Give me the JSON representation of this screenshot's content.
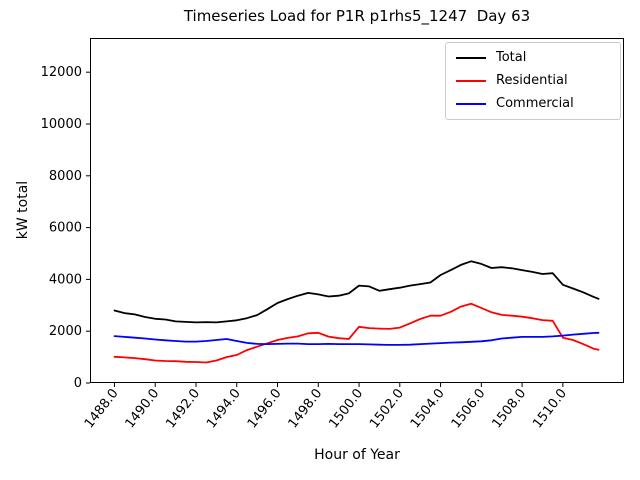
{
  "chart_data": {
    "type": "line",
    "title": "Timeseries Load for P1R p1rhs5_1247  Day 63",
    "xlabel": "Hour of Year",
    "ylabel": "kW total",
    "xlim": [
      1486.8,
      1513.0
    ],
    "ylim": [
      0,
      13320
    ],
    "grid": false,
    "legend_position": "upper right",
    "xticks": [
      1488,
      1490,
      1492,
      1494,
      1496,
      1498,
      1500,
      1502,
      1504,
      1506,
      1508,
      1510
    ],
    "xtick_labels": [
      "1488.0",
      "1490.0",
      "1492.0",
      "1494.0",
      "1496.0",
      "1498.0",
      "1500.0",
      "1502.0",
      "1504.0",
      "1506.0",
      "1508.0",
      "1510.0"
    ],
    "yticks": [
      0,
      2000,
      4000,
      6000,
      8000,
      10000,
      12000
    ],
    "ytick_labels": [
      "0",
      "2000",
      "4000",
      "6000",
      "8000",
      "10000",
      "12000"
    ],
    "x": [
      1488.0,
      1488.5,
      1489.0,
      1489.5,
      1490.0,
      1490.5,
      1491.0,
      1491.5,
      1492.0,
      1492.5,
      1493.0,
      1493.5,
      1494.0,
      1494.5,
      1495.0,
      1495.5,
      1496.0,
      1496.5,
      1497.0,
      1497.5,
      1498.0,
      1498.5,
      1499.0,
      1499.5,
      1500.0,
      1500.5,
      1501.0,
      1501.5,
      1502.0,
      1502.5,
      1503.0,
      1503.5,
      1504.0,
      1504.5,
      1505.0,
      1505.5,
      1506.0,
      1506.5,
      1507.0,
      1507.5,
      1508.0,
      1508.5,
      1509.0,
      1509.5,
      1510.0,
      1510.5,
      1511.0,
      1511.5,
      1511.75
    ],
    "series": [
      {
        "name": "Total",
        "color": "#000000",
        "values": [
          2800,
          2700,
          2650,
          2550,
          2480,
          2450,
          2380,
          2360,
          2340,
          2350,
          2340,
          2380,
          2420,
          2500,
          2620,
          2850,
          3090,
          3240,
          3370,
          3480,
          3420,
          3340,
          3370,
          3460,
          3760,
          3730,
          3560,
          3620,
          3680,
          3760,
          3820,
          3880,
          4170,
          4360,
          4560,
          4700,
          4600,
          4440,
          4470,
          4430,
          4360,
          4290,
          4210,
          4240,
          3790,
          3650,
          3500,
          3330,
          3250
        ]
      },
      {
        "name": "Residential",
        "color": "#ff0000",
        "values": [
          1010,
          990,
          960,
          920,
          870,
          850,
          840,
          820,
          810,
          790,
          870,
          1000,
          1080,
          1270,
          1400,
          1530,
          1660,
          1740,
          1800,
          1920,
          1940,
          1790,
          1730,
          1700,
          2170,
          2120,
          2100,
          2090,
          2140,
          2300,
          2470,
          2600,
          2600,
          2750,
          2950,
          3060,
          2900,
          2730,
          2630,
          2600,
          2560,
          2500,
          2430,
          2400,
          1750,
          1660,
          1500,
          1330,
          1280
        ]
      },
      {
        "name": "Commercial",
        "color": "#0000ff",
        "values": [
          1810,
          1780,
          1750,
          1720,
          1680,
          1650,
          1620,
          1600,
          1600,
          1620,
          1660,
          1700,
          1620,
          1550,
          1510,
          1500,
          1510,
          1520,
          1520,
          1500,
          1500,
          1510,
          1500,
          1500,
          1500,
          1490,
          1480,
          1470,
          1470,
          1480,
          1500,
          1520,
          1540,
          1560,
          1570,
          1590,
          1610,
          1650,
          1720,
          1750,
          1780,
          1780,
          1780,
          1800,
          1830,
          1870,
          1900,
          1930,
          1940
        ]
      }
    ]
  }
}
